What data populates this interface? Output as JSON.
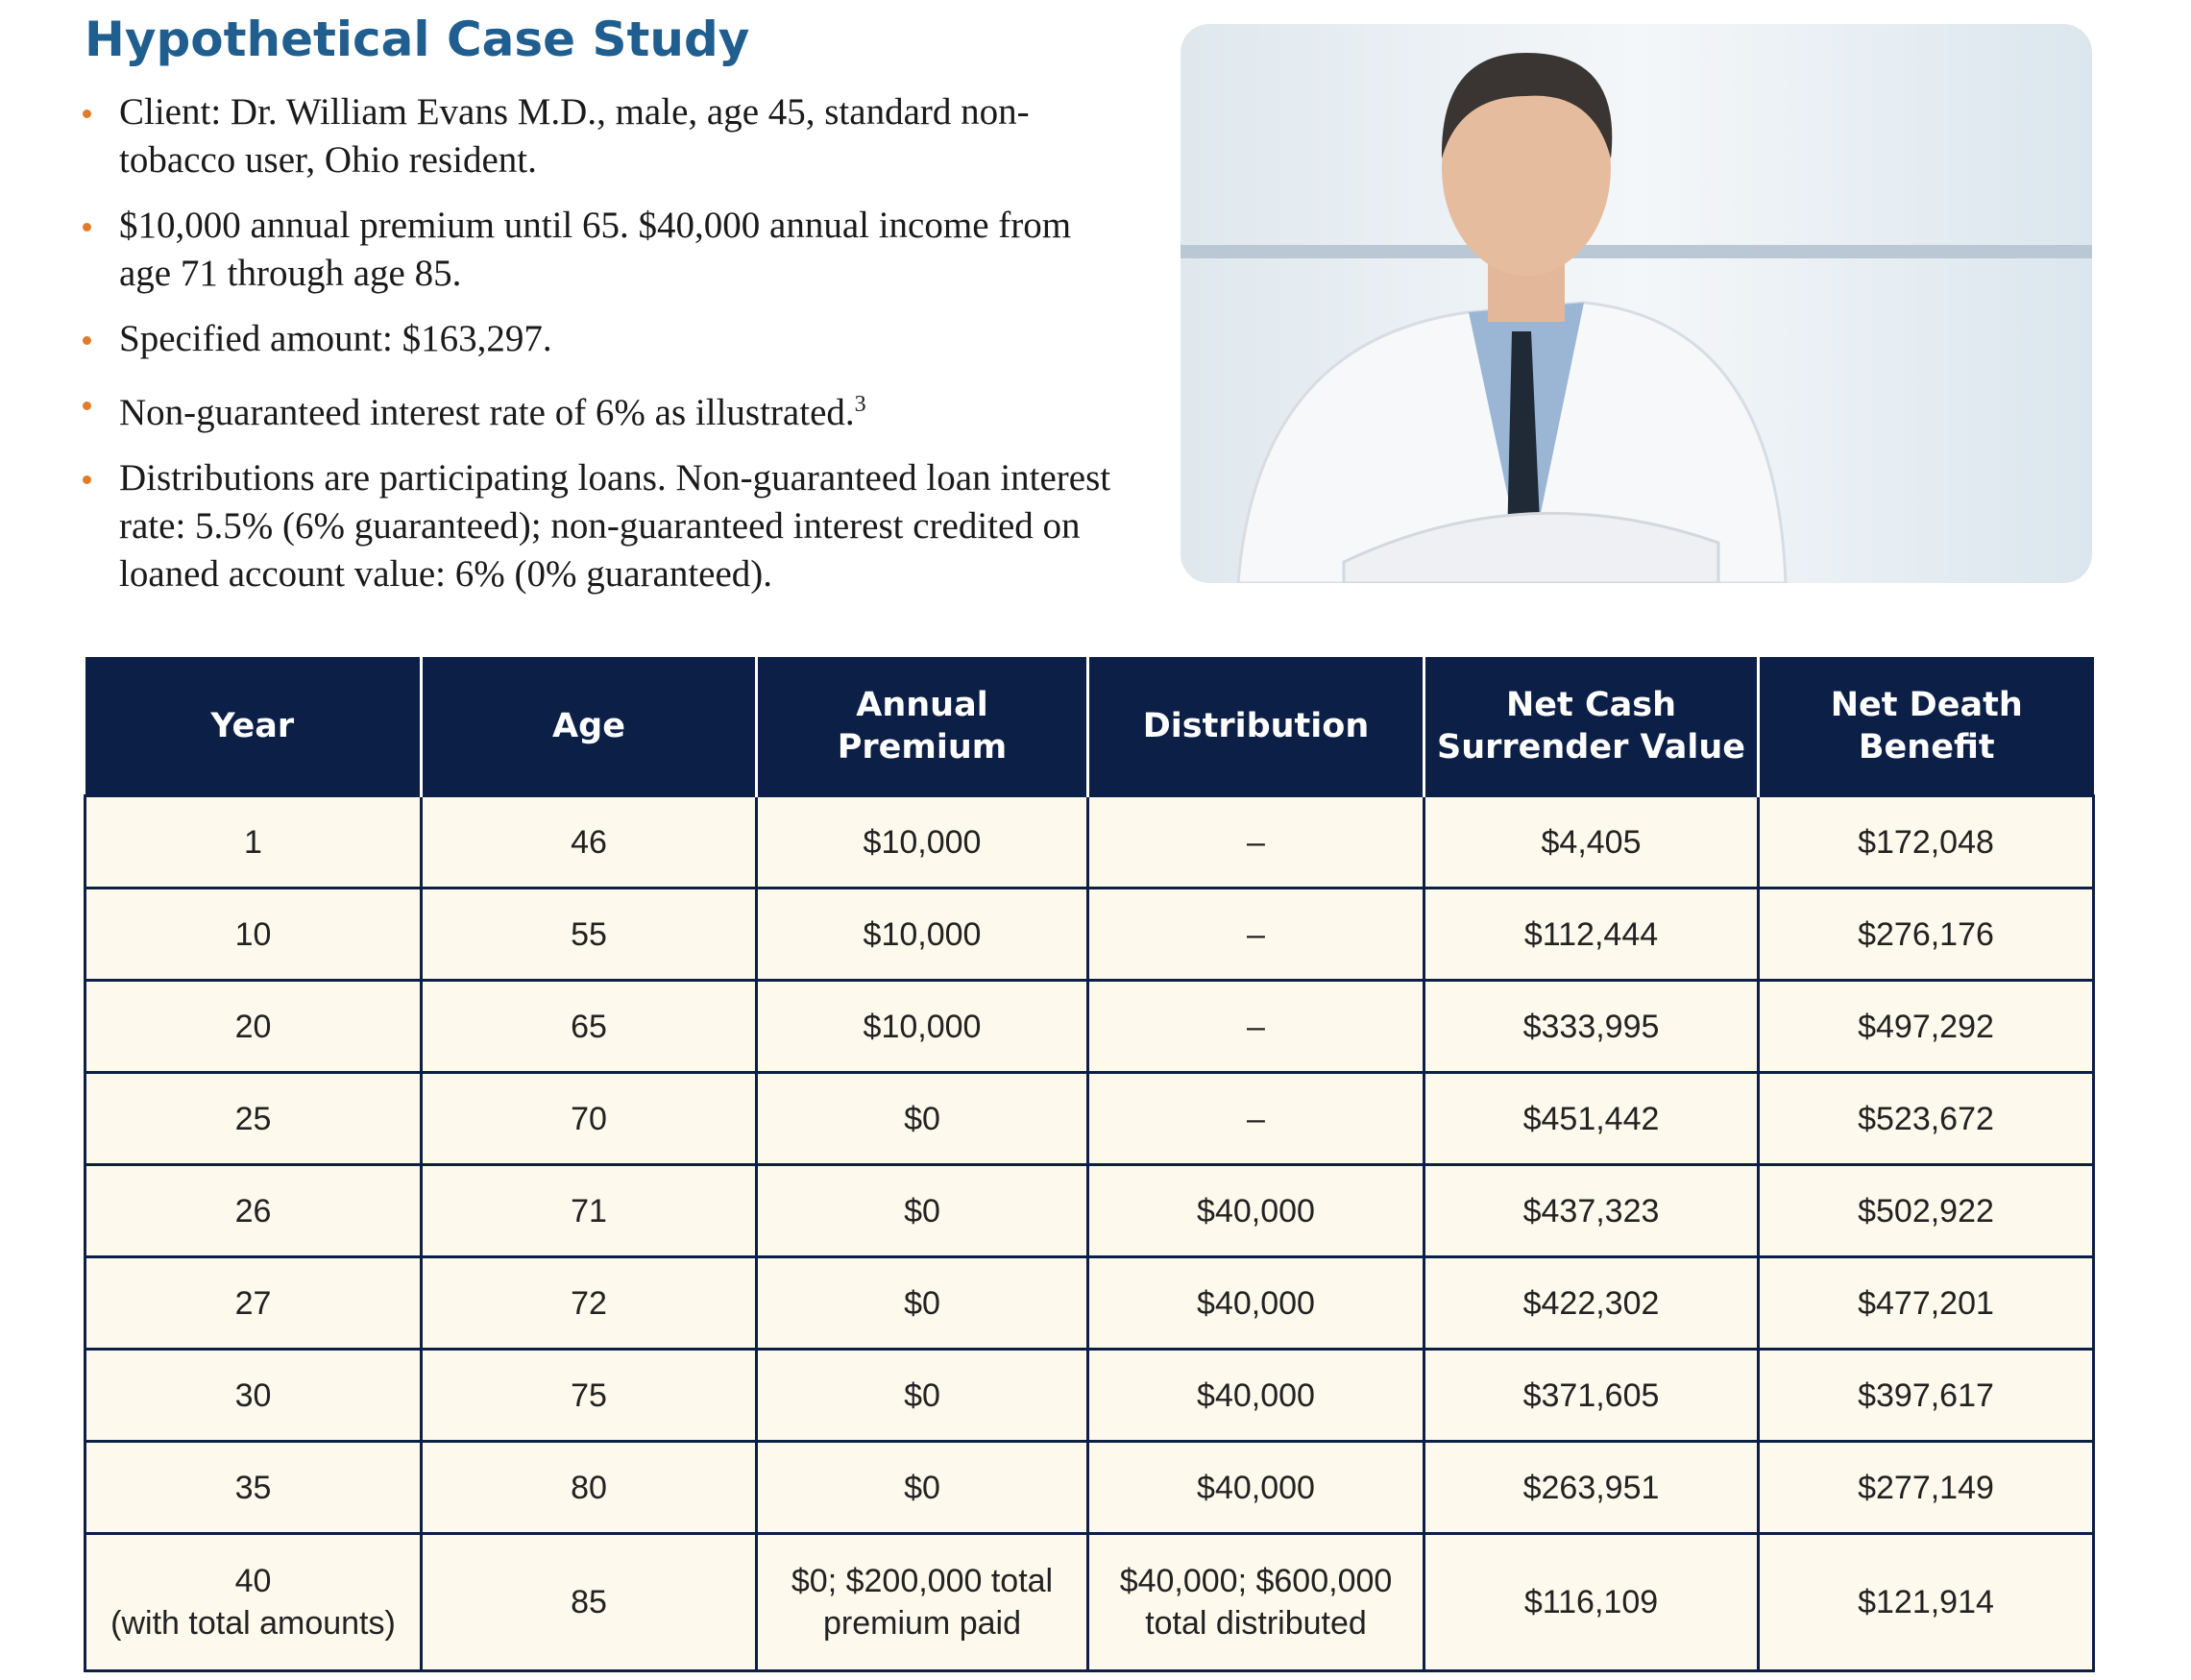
{
  "header": {
    "title": "Hypothetical Case Study"
  },
  "bullets": [
    {
      "text": "Client: Dr. William Evans M.D., male, age 45, standard non-tobacco user, Ohio resident."
    },
    {
      "text": "$10,000 annual premium until 65. $40,000 annual income from age 71 through age 85."
    },
    {
      "text": "Specified amount: $163,297."
    },
    {
      "text": "Non-guaranteed interest rate of 6% as illustrated.",
      "note": "3"
    },
    {
      "text": "Distributions are participating loans. Non-guaranteed loan interest rate: 5.5% (6% guaranteed); non-guaranteed interest credited on loaned account value: 6% (0% guaranteed)."
    }
  ],
  "table": {
    "headers": [
      [
        "Year"
      ],
      [
        "Age"
      ],
      [
        "Annual",
        "Premium"
      ],
      [
        "Distribution"
      ],
      [
        "Net Cash",
        "Surrender Value"
      ],
      [
        "Net Death",
        "Benefit"
      ]
    ],
    "rows": [
      [
        [
          "1"
        ],
        [
          "46"
        ],
        [
          "$10,000"
        ],
        [
          "–"
        ],
        [
          "$4,405"
        ],
        [
          "$172,048"
        ]
      ],
      [
        [
          "10"
        ],
        [
          "55"
        ],
        [
          "$10,000"
        ],
        [
          "–"
        ],
        [
          "$112,444"
        ],
        [
          "$276,176"
        ]
      ],
      [
        [
          "20"
        ],
        [
          "65"
        ],
        [
          "$10,000"
        ],
        [
          "–"
        ],
        [
          "$333,995"
        ],
        [
          "$497,292"
        ]
      ],
      [
        [
          "25"
        ],
        [
          "70"
        ],
        [
          "$0"
        ],
        [
          "–"
        ],
        [
          "$451,442"
        ],
        [
          "$523,672"
        ]
      ],
      [
        [
          "26"
        ],
        [
          "71"
        ],
        [
          "$0"
        ],
        [
          "$40,000"
        ],
        [
          "$437,323"
        ],
        [
          "$502,922"
        ]
      ],
      [
        [
          "27"
        ],
        [
          "72"
        ],
        [
          "$0"
        ],
        [
          "$40,000"
        ],
        [
          "$422,302"
        ],
        [
          "$477,201"
        ]
      ],
      [
        [
          "30"
        ],
        [
          "75"
        ],
        [
          "$0"
        ],
        [
          "$40,000"
        ],
        [
          "$371,605"
        ],
        [
          "$397,617"
        ]
      ],
      [
        [
          "35"
        ],
        [
          "80"
        ],
        [
          "$0"
        ],
        [
          "$40,000"
        ],
        [
          "$263,951"
        ],
        [
          "$277,149"
        ]
      ],
      [
        [
          "40",
          "(with total amounts)"
        ],
        [
          "85"
        ],
        [
          "$0; $200,000 total",
          "premium paid"
        ],
        [
          "$40,000; $600,000",
          "total distributed"
        ],
        [
          "$116,109"
        ],
        [
          "$121,914"
        ]
      ]
    ]
  }
}
